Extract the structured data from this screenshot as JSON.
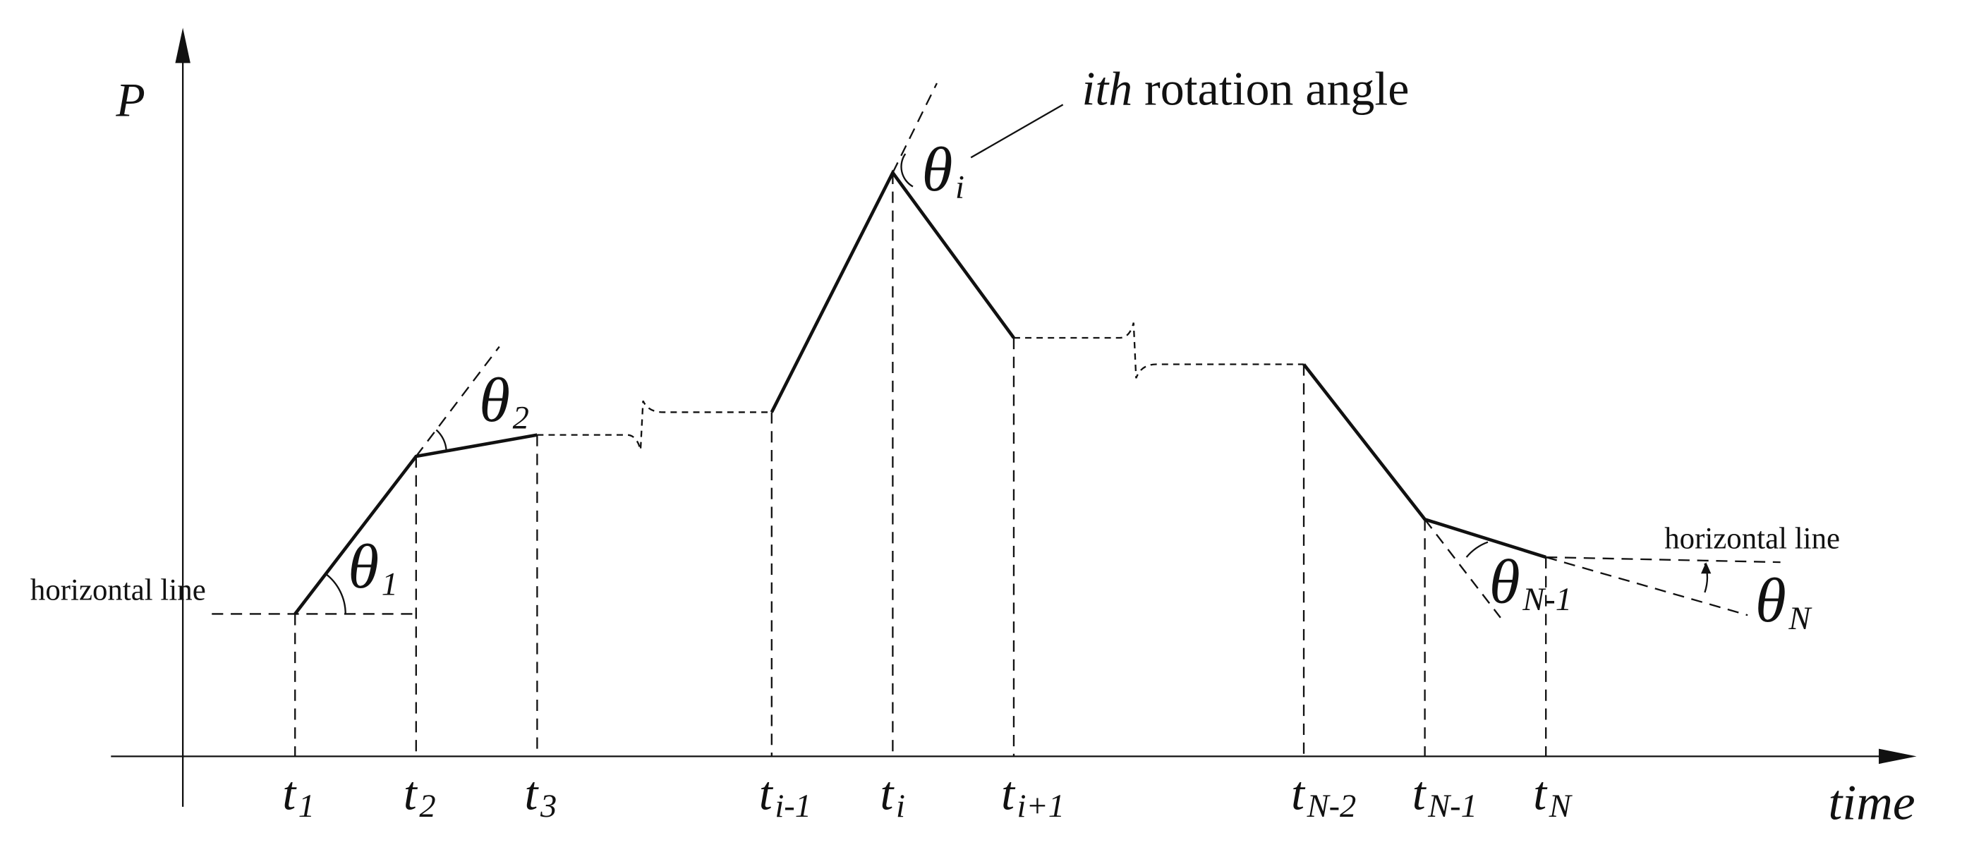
{
  "axes": {
    "y_label": "P",
    "x_label": "time"
  },
  "time_labels": [
    {
      "base": "t",
      "sub": "1"
    },
    {
      "base": "t",
      "sub": "2"
    },
    {
      "base": "t",
      "sub": "3"
    },
    {
      "base": "t",
      "sub": "i-1"
    },
    {
      "base": "t",
      "sub": "i"
    },
    {
      "base": "t",
      "sub": "i+1"
    },
    {
      "base": "t",
      "sub": "N-2"
    },
    {
      "base": "t",
      "sub": "N-1"
    },
    {
      "base": "t",
      "sub": "N"
    }
  ],
  "angle_labels": [
    {
      "symbol": "θ",
      "sub": "1"
    },
    {
      "symbol": "θ",
      "sub": "2"
    },
    {
      "symbol": "θ",
      "sub": "i"
    },
    {
      "symbol": "θ",
      "sub": "N-1"
    },
    {
      "symbol": "θ",
      "sub": "N"
    }
  ],
  "annotations": {
    "rotation_angle": {
      "italic": "ith",
      "text": "rotation angle"
    },
    "horizontal_line_left": "horizontal line",
    "horizontal_line_right": "horizontal line"
  }
}
